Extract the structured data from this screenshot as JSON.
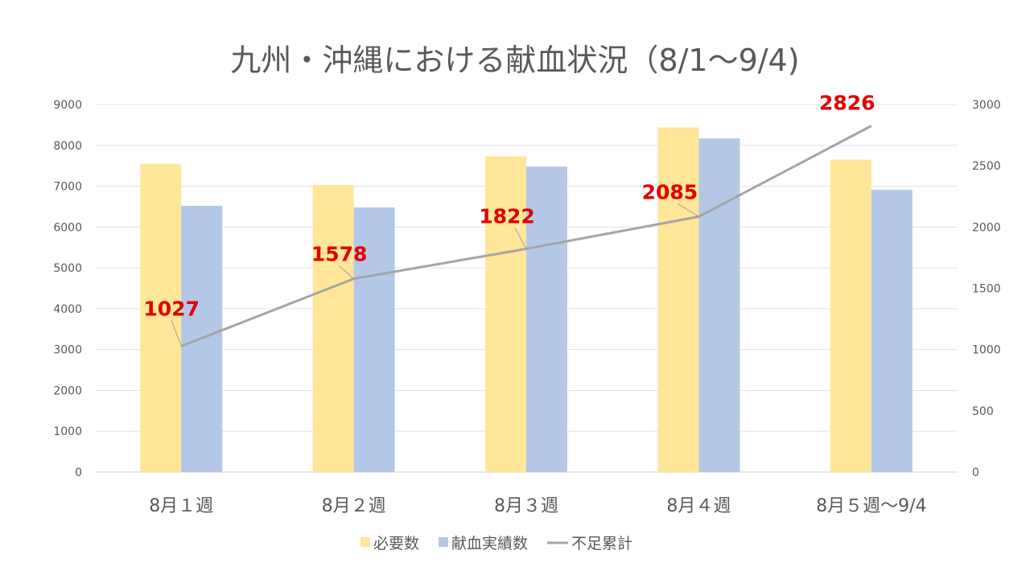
{
  "chart_data": {
    "type": "bar",
    "title": "九州・沖縄における献血状況（8/1～9/4)",
    "categories": [
      "8月１週",
      "8月２週",
      "8月３週",
      "8月４週",
      "8月５週～9/4"
    ],
    "series": [
      {
        "name": "必要数",
        "type": "bar",
        "axis": "left",
        "color": "#FFE699",
        "values": [
          7550,
          7030,
          7730,
          8440,
          7650
        ]
      },
      {
        "name": "献血実績数",
        "type": "bar",
        "axis": "left",
        "color": "#B4C7E7",
        "values": [
          6520,
          6480,
          7480,
          8170,
          6910
        ]
      },
      {
        "name": "不足累計",
        "type": "line",
        "axis": "right",
        "color": "#A5A5A5",
        "values": [
          1027,
          1578,
          1822,
          2085,
          2826
        ],
        "data_labels": [
          "1027",
          "1578",
          "1822",
          "2085",
          "2826"
        ]
      }
    ],
    "y_left": {
      "min": 0,
      "max": 9000,
      "step": 1000,
      "ticks": [
        "0",
        "1000",
        "2000",
        "3000",
        "4000",
        "5000",
        "6000",
        "7000",
        "8000",
        "9000"
      ]
    },
    "y_right": {
      "min": 0,
      "max": 3000,
      "step": 500,
      "ticks": [
        "0",
        "500",
        "1000",
        "1500",
        "2000",
        "2500",
        "3000"
      ]
    },
    "grid": true,
    "legend_position": "bottom",
    "label_color": "#E00000"
  }
}
